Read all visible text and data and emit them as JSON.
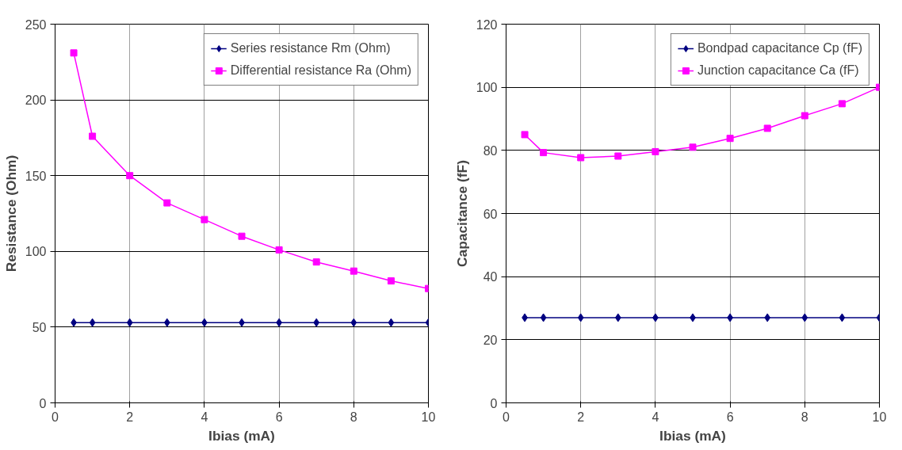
{
  "chart_data": [
    {
      "type": "line",
      "xlabel": "Ibias (mA)",
      "ylabel": "Resistance (Ohm)",
      "x": [
        0.5,
        1,
        2,
        3,
        4,
        5,
        6,
        7,
        8,
        9,
        10
      ],
      "series": [
        {
          "name": "Series resistance Rm (Ohm)",
          "color": "#000080",
          "marker": "diamond",
          "values": [
            53,
            53,
            53,
            53,
            53,
            53,
            53,
            53,
            53,
            53,
            53
          ]
        },
        {
          "name": "Differential resistance Ra (Ohm)",
          "color": "#ff00ff",
          "marker": "square",
          "values": [
            231,
            176,
            150,
            132,
            121,
            110,
            101,
            93,
            87,
            80.5,
            75.5
          ]
        }
      ],
      "xlim": [
        0,
        10
      ],
      "xticks": [
        0,
        2,
        4,
        6,
        8,
        10
      ],
      "ylim": [
        0,
        250
      ],
      "yticks": [
        0,
        50,
        100,
        150,
        200,
        250
      ],
      "grid": true,
      "legend": "top right",
      "line_style": "solid"
    },
    {
      "type": "line",
      "xlabel": "Ibias (mA)",
      "ylabel": "Capacitance (fF)",
      "x": [
        0.5,
        1,
        2,
        3,
        4,
        5,
        6,
        7,
        8,
        9,
        10
      ],
      "series": [
        {
          "name": "Bondpad capacitance Cp (fF)",
          "color": "#000080",
          "marker": "diamond",
          "values": [
            27,
            27,
            27,
            27,
            27,
            27,
            27,
            27,
            27,
            27,
            27
          ]
        },
        {
          "name": "Junction capacitance Ca (fF)",
          "color": "#ff00ff",
          "marker": "square",
          "values": [
            85,
            79.3,
            77.7,
            78.2,
            79.6,
            81,
            83.8,
            87,
            91,
            94.8,
            100
          ]
        }
      ],
      "xlim": [
        0,
        10
      ],
      "xticks": [
        0,
        2,
        4,
        6,
        8,
        10
      ],
      "ylim": [
        0,
        120
      ],
      "yticks": [
        0,
        20,
        40,
        60,
        80,
        100,
        120
      ],
      "grid": true,
      "legend": "top right",
      "line_style": "solid"
    }
  ]
}
